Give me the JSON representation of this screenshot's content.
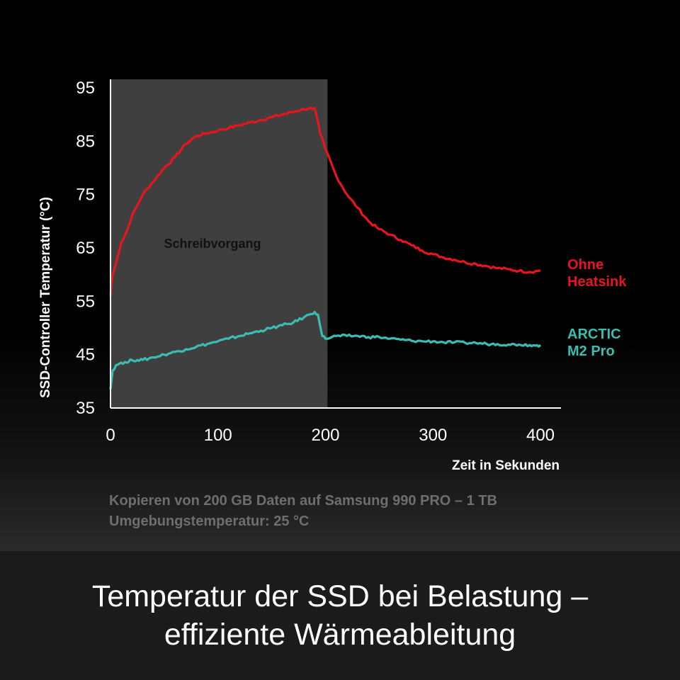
{
  "chart_data": {
    "type": "line",
    "title": "",
    "xlabel": "Zeit in Sekunden",
    "ylabel": "SSD-Controller Temperatur (°C)",
    "xlim": [
      0,
      415
    ],
    "ylim": [
      35,
      95
    ],
    "x_ticks": [
      0,
      100,
      200,
      300,
      400
    ],
    "y_ticks": [
      35,
      45,
      55,
      65,
      75,
      85,
      95
    ],
    "grid": false,
    "shaded_region": {
      "x_start": 0,
      "x_end": 190,
      "label": "Schreibvorgang",
      "color": "#3f3f3f"
    },
    "series": [
      {
        "name": "Ohne Heatsink",
        "legend_lines": [
          "Ohne",
          "Heatsink"
        ],
        "color": "#e8141e",
        "x": [
          0,
          2,
          5,
          10,
          15,
          20,
          25,
          30,
          40,
          50,
          60,
          70,
          80,
          90,
          100,
          110,
          120,
          130,
          140,
          150,
          160,
          170,
          180,
          185,
          188,
          190,
          192,
          195,
          200,
          210,
          220,
          230,
          240,
          250,
          260,
          270,
          280,
          290,
          300,
          310,
          320,
          330,
          340,
          350,
          360,
          370,
          380,
          390,
          395,
          400
        ],
        "values": [
          56,
          60,
          62,
          66,
          68,
          71,
          73,
          75,
          77.5,
          80,
          82,
          84.5,
          86,
          86.5,
          87,
          87.5,
          88,
          88.5,
          89,
          89.5,
          90,
          90.5,
          91,
          91.2,
          91,
          91.2,
          89.5,
          86.5,
          83.5,
          78.5,
          75,
          72.5,
          70,
          68.5,
          67.5,
          66.5,
          65.5,
          64.5,
          63.8,
          63.2,
          62.8,
          62.3,
          62,
          61.6,
          61.2,
          61,
          60.7,
          60.5,
          60.6,
          60.8
        ]
      },
      {
        "name": "ARCTIC M2 Pro",
        "legend_lines": [
          "ARCTIC",
          "M2 Pro"
        ],
        "color": "#3cbdb2",
        "x": [
          0,
          2,
          5,
          10,
          15,
          20,
          25,
          30,
          40,
          50,
          60,
          70,
          80,
          90,
          100,
          110,
          120,
          130,
          140,
          150,
          160,
          170,
          180,
          185,
          190,
          193,
          197,
          200,
          210,
          220,
          230,
          240,
          250,
          260,
          270,
          280,
          290,
          300,
          310,
          320,
          330,
          340,
          350,
          360,
          370,
          380,
          390,
          395,
          400
        ],
        "values": [
          38.5,
          42,
          43,
          43.5,
          43.5,
          44,
          44,
          44,
          44.5,
          45,
          45.5,
          46,
          46.5,
          47,
          47.5,
          48,
          48.5,
          49,
          49.5,
          50,
          50.5,
          51,
          52,
          52.5,
          53,
          52.5,
          48.5,
          48,
          48.5,
          48.5,
          48.5,
          48.3,
          48.3,
          48,
          47.8,
          47.6,
          47.5,
          47.5,
          47.3,
          47.3,
          47.2,
          47.2,
          47,
          47,
          46.9,
          46.9,
          46.8,
          46.7,
          46.8
        ]
      }
    ]
  },
  "notes": [
    "Kopieren von  200 GB Daten auf  Samsung 990 PRO  – 1 TB",
    "Umgebungstemperatur: 25 °C"
  ],
  "banner": {
    "line1": "Temperatur der SSD bei Belastung –",
    "line2": "effiziente Wärmeableitung"
  }
}
